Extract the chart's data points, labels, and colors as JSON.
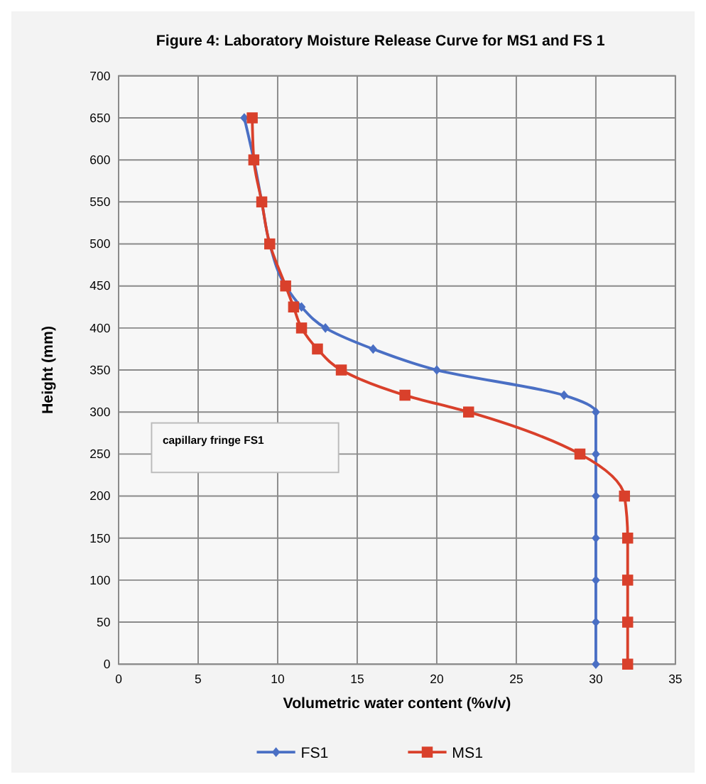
{
  "chart_data": {
    "type": "line",
    "title": "Figure 4: Laboratory Moisture Release Curve for MS1 and FS 1",
    "xlabel": "Volumetric water content (%v/v)",
    "ylabel": "Height (mm)",
    "xlim": [
      0,
      35
    ],
    "xticks": [
      0,
      5,
      10,
      15,
      20,
      25,
      30,
      35
    ],
    "ylim": [
      0,
      700
    ],
    "yticks": [
      0,
      50,
      100,
      150,
      200,
      250,
      300,
      350,
      400,
      450,
      500,
      550,
      600,
      650,
      700
    ],
    "grid": true,
    "legend": "bottom",
    "annotations": [
      "capillary fringe FS1"
    ],
    "series": [
      {
        "name": "FS1",
        "color": "#4a6fc4",
        "marker": "diamond",
        "x": [
          7.9,
          8.5,
          9,
          9.5,
          10.5,
          11.5,
          13,
          16,
          20,
          28,
          30,
          30,
          30,
          30,
          30,
          30,
          30
        ],
        "values": [
          650,
          600,
          550,
          500,
          450,
          425,
          400,
          375,
          350,
          320,
          300,
          250,
          200,
          150,
          100,
          50,
          0
        ]
      },
      {
        "name": "MS1",
        "color": "#d9402b",
        "marker": "square",
        "x": [
          8.4,
          8.5,
          9,
          9.5,
          10.5,
          11,
          11.5,
          12.5,
          14,
          18,
          22,
          29,
          31.8,
          32,
          32,
          32,
          32
        ],
        "values": [
          650,
          600,
          550,
          500,
          450,
          425,
          400,
          375,
          350,
          320,
          300,
          250,
          200,
          150,
          100,
          50,
          0
        ]
      }
    ]
  }
}
